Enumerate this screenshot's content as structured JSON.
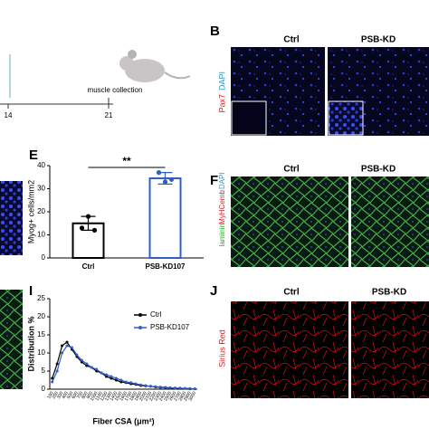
{
  "timeline": {
    "ticks": [
      "14",
      "21"
    ],
    "label": "muscle collection"
  },
  "panels": {
    "B": {
      "letter": "B",
      "columns": [
        "Ctrl",
        "PSB-KD"
      ],
      "stain": [
        "Pax7",
        "DAPI"
      ]
    },
    "F": {
      "letter": "F",
      "columns": [
        "Ctrl",
        "PSB-KD"
      ],
      "stain": [
        "laminin",
        "MyHCemb",
        "DAPI"
      ]
    },
    "J": {
      "letter": "J",
      "columns": [
        "Ctrl",
        "PSB-KD"
      ],
      "stain": [
        "Sirius Red"
      ]
    }
  },
  "chart_data": [
    {
      "type": "bar",
      "letter": "E",
      "y_label": "Myog+ cells/mm2",
      "categories": [
        "Ctrl",
        "PSB-KD107"
      ],
      "values": [
        15,
        34.5
      ],
      "errors": [
        3,
        2.5
      ],
      "points": [
        [
          13,
          18,
          12
        ],
        [
          37,
          33,
          34
        ]
      ],
      "colors": [
        "#000000",
        "#2f5fc4"
      ],
      "annotation": "**",
      "ylim": [
        0,
        40
      ],
      "yticks": [
        0,
        10,
        20,
        30,
        40
      ]
    },
    {
      "type": "line",
      "letter": "I",
      "y_label": "Distribution %",
      "x_label": "Fiber CSA (μm²)",
      "categories": [
        "100",
        "200",
        "300",
        "400",
        "500",
        "600",
        "700",
        "800",
        "900",
        "1000",
        "1100",
        "1200",
        "1300",
        "1400",
        "1500",
        "1600",
        "1700",
        "1800",
        "1900",
        "2000",
        "2100",
        "2200",
        "2300",
        "2400",
        "2500",
        "2600",
        "2700",
        "2800",
        "2900",
        "3000"
      ],
      "series": [
        {
          "name": "Ctrl",
          "color": "#000000",
          "values": [
            3,
            7,
            12,
            13,
            11,
            9,
            7.5,
            6.5,
            6,
            5,
            4.5,
            3.5,
            3,
            2.5,
            2,
            1.8,
            1.5,
            1.3,
            1,
            0.9,
            0.8,
            0.6,
            0.5,
            0.4,
            0.3,
            0.3,
            0.2,
            0.2,
            0.1,
            0.1
          ]
        },
        {
          "name": "PSB-KD107",
          "color": "#2f5fc4",
          "values": [
            2,
            5,
            10,
            12,
            11.5,
            9.5,
            8,
            7,
            6,
            5.5,
            4.5,
            4,
            3.5,
            3,
            2.5,
            2,
            1.8,
            1.5,
            1.2,
            1,
            0.8,
            0.7,
            0.6,
            0.5,
            0.4,
            0.3,
            0.3,
            0.2,
            0.2,
            0.1
          ]
        }
      ],
      "legend": "upper right",
      "ylim": [
        0,
        25
      ],
      "yticks": [
        0,
        5,
        10,
        15,
        20,
        25
      ]
    }
  ]
}
